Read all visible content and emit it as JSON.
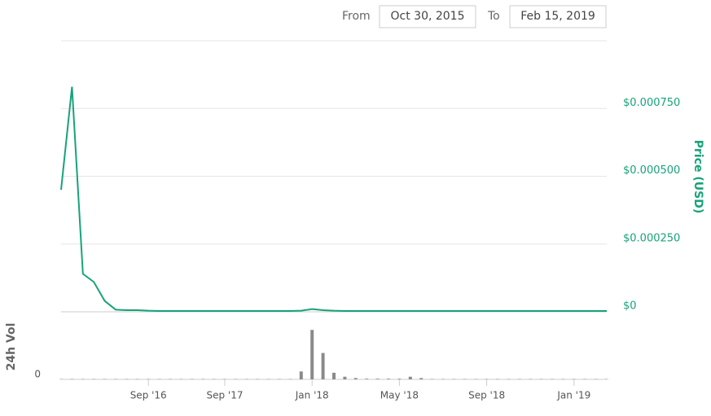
{
  "date_range": {
    "from_label": "From",
    "from": "Oct 30, 2015",
    "to_label": "To",
    "to": "Feb 15, 2019"
  },
  "chart_data": {
    "type": "line",
    "ylabel": "Price (USD)",
    "y2label": "24h Vol",
    "x": [
      "2015-10-30",
      "2015-12-07",
      "2016-01-14",
      "2016-02-21",
      "2016-03-30",
      "2016-05-07",
      "2016-06-14",
      "2016-07-22",
      "2016-09-01",
      "2016-10-23",
      "2016-12-14",
      "2017-02-04",
      "2017-03-28",
      "2017-05-19",
      "2017-07-10",
      "2017-09-01",
      "2017-09-16",
      "2017-10-01",
      "2017-10-16",
      "2017-10-31",
      "2017-11-15",
      "2017-11-30",
      "2017-12-15",
      "2018-01-01",
      "2018-01-16",
      "2018-01-31",
      "2018-02-15",
      "2018-03-02",
      "2018-03-17",
      "2018-04-01",
      "2018-04-16",
      "2018-05-01",
      "2018-05-16",
      "2018-05-31",
      "2018-06-15",
      "2018-06-30",
      "2018-07-15",
      "2018-07-30",
      "2018-08-14",
      "2018-09-01",
      "2018-09-16",
      "2018-10-01",
      "2018-10-16",
      "2018-10-31",
      "2018-11-15",
      "2018-11-30",
      "2018-12-15",
      "2019-01-01",
      "2019-01-16",
      "2019-01-31",
      "2019-02-15"
    ],
    "series": [
      {
        "color": "#17a37a",
        "values": [
          0.00045,
          0.00083,
          0.00014,
          0.00011,
          4e-05,
          8e-06,
          6e-06,
          6e-06,
          4e-06,
          3e-06,
          3e-06,
          3e-06,
          3e-06,
          3e-06,
          3e-06,
          3e-06,
          3e-06,
          3e-06,
          3e-06,
          3e-06,
          3e-06,
          3e-06,
          4e-06,
          1e-05,
          6e-06,
          4e-06,
          3e-06,
          3e-06,
          3e-06,
          3e-06,
          3e-06,
          3e-06,
          3e-06,
          3e-06,
          3e-06,
          3e-06,
          3e-06,
          3e-06,
          3e-06,
          3e-06,
          3e-06,
          3e-06,
          3e-06,
          3e-06,
          3e-06,
          3e-06,
          3e-06,
          3e-06,
          3e-06,
          3e-06,
          3e-06
        ]
      },
      {
        "type": "bar",
        "axis": "y2",
        "color": "#8a8a8a",
        "values": [
          0.5,
          0.5,
          0.5,
          0.5,
          0.5,
          0.5,
          0.5,
          0.5,
          0.5,
          0.5,
          0.5,
          0.5,
          0.5,
          0.5,
          0.5,
          0.5,
          0.5,
          0.5,
          0.5,
          0.5,
          0.5,
          0.5,
          12,
          75,
          40,
          10,
          4,
          2,
          1,
          1,
          1,
          1,
          4,
          2,
          0.5,
          0.5,
          0.5,
          0.5,
          0.5,
          0.5,
          0.5,
          0.5,
          0.5,
          0.5,
          0.5,
          0.5,
          0.5,
          0.5,
          0.5,
          0.5,
          0.5
        ]
      }
    ],
    "ylim": [
      0,
      0.001
    ],
    "yticks": [
      {
        "value": 0,
        "label": "$0"
      },
      {
        "value": 0.00025,
        "label": "$0.000250"
      },
      {
        "value": 0.0005,
        "label": "$0.000500"
      },
      {
        "value": 0.00075,
        "label": "$0.000750"
      }
    ],
    "y2lim": [
      0,
      100
    ],
    "y2ticks": [
      0
    ],
    "xticks": [
      {
        "value": "2016-09-01",
        "label": "Sep '16"
      },
      {
        "value": "2017-09-01",
        "label": "Sep '17"
      },
      {
        "value": "2018-01-01",
        "label": "Jan '18"
      },
      {
        "value": "2018-05-01",
        "label": "May '18"
      },
      {
        "value": "2018-09-01",
        "label": "Sep '18"
      },
      {
        "value": "2019-01-01",
        "label": "Jan '19"
      }
    ],
    "grid": true
  }
}
